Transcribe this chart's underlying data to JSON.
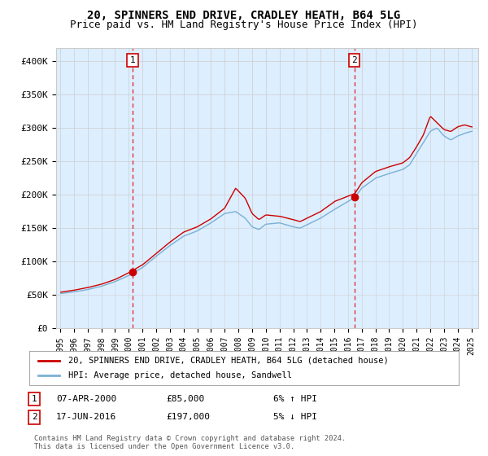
{
  "title": "20, SPINNERS END DRIVE, CRADLEY HEATH, B64 5LG",
  "subtitle": "Price paid vs. HM Land Registry's House Price Index (HPI)",
  "legend_label_red": "20, SPINNERS END DRIVE, CRADLEY HEATH, B64 5LG (detached house)",
  "legend_label_blue": "HPI: Average price, detached house, Sandwell",
  "annotation1_date": "07-APR-2000",
  "annotation1_price": "£85,000",
  "annotation1_hpi": "6% ↑ HPI",
  "annotation2_date": "17-JUN-2016",
  "annotation2_price": "£197,000",
  "annotation2_hpi": "5% ↓ HPI",
  "footer": "Contains HM Land Registry data © Crown copyright and database right 2024.\nThis data is licensed under the Open Government Licence v3.0.",
  "ylim": [
    0,
    420000
  ],
  "yticks": [
    0,
    50000,
    100000,
    150000,
    200000,
    250000,
    300000,
    350000,
    400000
  ],
  "ytick_labels": [
    "£0",
    "£50K",
    "£100K",
    "£150K",
    "£200K",
    "£250K",
    "£300K",
    "£350K",
    "£400K"
  ],
  "sale1_x": 2000.27,
  "sale1_y": 85000,
  "sale2_x": 2016.46,
  "sale2_y": 197000,
  "line_color_red": "#cc0000",
  "line_color_blue": "#7ab0d4",
  "fill_color_blue": "#ddeeff",
  "dashed_line_color": "#dd2222",
  "title_fontsize": 10,
  "subtitle_fontsize": 9,
  "background_color": "#ffffff",
  "grid_color": "#cccccc",
  "xlim_left": 1994.7,
  "xlim_right": 2025.5
}
